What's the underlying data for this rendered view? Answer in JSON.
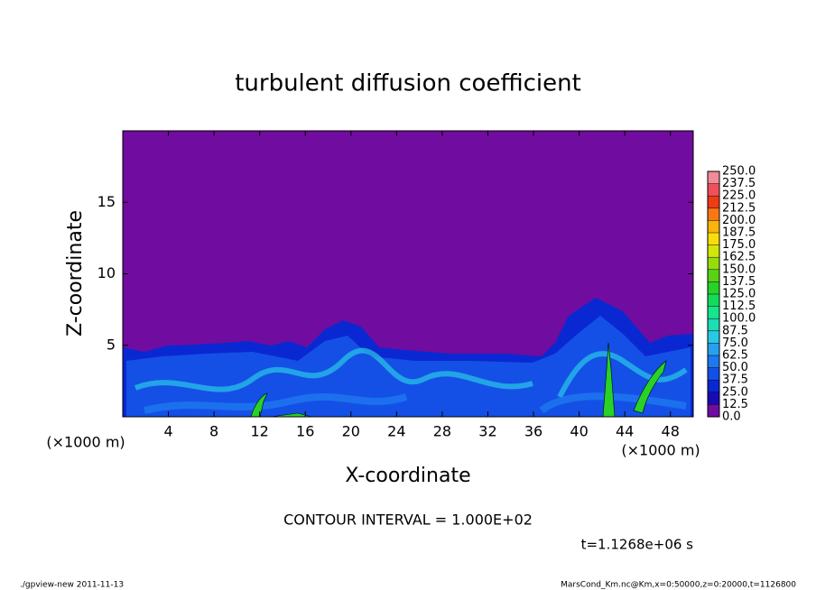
{
  "chart_data": {
    "type": "contour",
    "title": "turbulent diffusion coefficient",
    "x_label": "X-coordinate",
    "y_label": "Z-coordinate",
    "x_unit_left": "(×1000 m)",
    "x_unit_right": "(×1000 m)",
    "contour_interval": "CONTOUR INTERVAL = 1.000E+02",
    "time_label": "t=1.1268e+06 s",
    "footer_left": "./gpview-new  2011-11-13",
    "footer_right": "MarsCond_Km.nc@Km,x=0:50000,z=0:20000,t=1126800",
    "xlim": [
      0,
      50
    ],
    "xticks": [
      4,
      8,
      12,
      16,
      20,
      24,
      28,
      32,
      36,
      40,
      44,
      48
    ],
    "ylim": [
      0,
      20
    ],
    "yticks": [
      5,
      10,
      15
    ],
    "levels": [
      {
        "value": 0,
        "label": "0.0"
      },
      {
        "value": 12.5,
        "label": "12.5"
      },
      {
        "value": 25,
        "label": "25.0"
      },
      {
        "value": 37.5,
        "label": "37.5"
      },
      {
        "value": 50,
        "label": "50.0"
      },
      {
        "value": 62.5,
        "label": "62.5"
      },
      {
        "value": 75,
        "label": "75.0"
      },
      {
        "value": 87.5,
        "label": "87.5"
      },
      {
        "value": 100,
        "label": "100.0"
      },
      {
        "value": 112.5,
        "label": "112.5"
      },
      {
        "value": 125,
        "label": "125.0"
      },
      {
        "value": 137.5,
        "label": "137.5"
      },
      {
        "value": 150,
        "label": "150.0"
      },
      {
        "value": 162.5,
        "label": "162.5"
      },
      {
        "value": 175,
        "label": "175.0"
      },
      {
        "value": 187.5,
        "label": "187.5"
      },
      {
        "value": 200,
        "label": "200.0"
      },
      {
        "value": 212.5,
        "label": "212.5"
      },
      {
        "value": 225,
        "label": "225.0"
      },
      {
        "value": 237.5,
        "label": "237.5"
      },
      {
        "value": 250,
        "label": "250.0"
      }
    ],
    "colors": [
      "#700ca0",
      "#1a0ab4",
      "#0a28d2",
      "#1450e6",
      "#1e78f0",
      "#28a0f0",
      "#28c8e6",
      "#1edcb4",
      "#14e68c",
      "#14dc5a",
      "#28d228",
      "#5ad214",
      "#96dc0a",
      "#d2e60a",
      "#fadc0a",
      "#fab40a",
      "#fa7814",
      "#f03c14",
      "#f0505a",
      "#f08c96"
    ]
  }
}
